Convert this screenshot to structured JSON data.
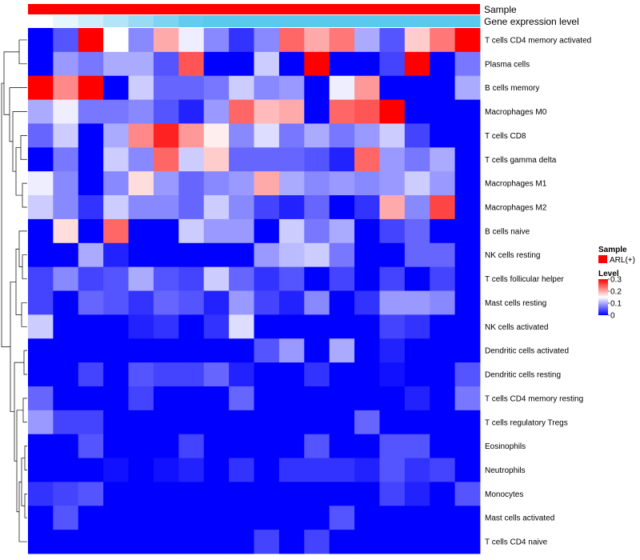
{
  "chart_data": {
    "type": "heatmap",
    "title": "",
    "annotation_tracks": [
      {
        "name": "Sample",
        "color": "#ff0000"
      },
      {
        "name": "Gene expression level",
        "gradient": [
          "#ffffff",
          "#5bc8ee"
        ]
      }
    ],
    "rows": [
      "T cells CD4 memory activated",
      "Plasma cells",
      "B cells memory",
      "Macrophages M0",
      "T cells CD8",
      "T cells gamma delta",
      "Macrophages M1",
      "Macrophages M2",
      "B cells naive",
      "NK cells resting",
      "T cells follicular helper",
      "Mast cells resting",
      "NK cells activated",
      "Dendritic cells activated",
      "Dendritic cells resting",
      "T cells CD4 memory resting",
      "T cells regulatory  Tregs",
      "Eosinophils",
      "Neutrophils",
      "Monocytes",
      "Mast cells activated",
      "T cells CD4 naive"
    ],
    "n_samples": 18,
    "values": [
      [
        0.0,
        0.05,
        0.3,
        0.15,
        0.08,
        0.2,
        0.14,
        0.08,
        0.03,
        0.08,
        0.24,
        0.2,
        0.23,
        0.1,
        0.05,
        0.18,
        0.23,
        0.3
      ],
      [
        0.0,
        0.09,
        0.07,
        0.1,
        0.1,
        0.05,
        0.25,
        0.0,
        0.0,
        0.12,
        0.0,
        0.3,
        0.0,
        0.0,
        0.04,
        0.3,
        0.0,
        0.07
      ],
      [
        0.3,
        0.22,
        0.3,
        0.0,
        0.12,
        0.06,
        0.06,
        0.07,
        0.12,
        0.08,
        0.09,
        0.0,
        0.14,
        0.21,
        0.0,
        0.0,
        0.0,
        0.1
      ],
      [
        0.1,
        0.14,
        0.07,
        0.07,
        0.08,
        0.05,
        0.02,
        0.09,
        0.24,
        0.19,
        0.2,
        0.0,
        0.24,
        0.25,
        0.3,
        0.0,
        0.0,
        0.0
      ],
      [
        0.06,
        0.12,
        0.0,
        0.1,
        0.22,
        0.28,
        0.21,
        0.16,
        0.08,
        0.13,
        0.07,
        0.1,
        0.07,
        0.09,
        0.12,
        0.04,
        0.0,
        0.0
      ],
      [
        0.0,
        0.07,
        0.0,
        0.12,
        0.08,
        0.24,
        0.12,
        0.18,
        0.06,
        0.06,
        0.06,
        0.05,
        0.02,
        0.24,
        0.09,
        0.07,
        0.1,
        0.0
      ],
      [
        0.14,
        0.08,
        0.0,
        0.08,
        0.17,
        0.09,
        0.06,
        0.08,
        0.09,
        0.2,
        0.1,
        0.08,
        0.09,
        0.08,
        0.09,
        0.12,
        0.09,
        0.0
      ],
      [
        0.12,
        0.08,
        0.03,
        0.12,
        0.08,
        0.08,
        0.06,
        0.12,
        0.08,
        0.04,
        0.02,
        0.06,
        0.0,
        0.03,
        0.2,
        0.08,
        0.26,
        0.0
      ],
      [
        0.0,
        0.17,
        0.0,
        0.24,
        0.0,
        0.0,
        0.12,
        0.09,
        0.09,
        0.0,
        0.12,
        0.07,
        0.1,
        0.0,
        0.04,
        0.06,
        0.0,
        0.0
      ],
      [
        0.0,
        0.0,
        0.1,
        0.02,
        0.0,
        0.0,
        0.0,
        0.0,
        0.0,
        0.09,
        0.11,
        0.12,
        0.07,
        0.0,
        0.0,
        0.06,
        0.06,
        0.0
      ],
      [
        0.04,
        0.08,
        0.04,
        0.05,
        0.1,
        0.05,
        0.04,
        0.12,
        0.06,
        0.03,
        0.05,
        0.0,
        0.04,
        0.0,
        0.04,
        0.0,
        0.04,
        0.0
      ],
      [
        0.04,
        0.0,
        0.06,
        0.05,
        0.03,
        0.06,
        0.05,
        0.02,
        0.09,
        0.04,
        0.02,
        0.08,
        0.0,
        0.03,
        0.09,
        0.09,
        0.08,
        0.0
      ],
      [
        0.12,
        0.0,
        0.0,
        0.0,
        0.02,
        0.03,
        0.0,
        0.03,
        0.13,
        0.0,
        0.0,
        0.0,
        0.0,
        0.0,
        0.04,
        0.03,
        0.0,
        0.0
      ],
      [
        0.0,
        0.0,
        0.0,
        0.0,
        0.0,
        0.0,
        0.0,
        0.0,
        0.0,
        0.05,
        0.09,
        0.0,
        0.1,
        0.0,
        0.02,
        0.0,
        0.0,
        0.0
      ],
      [
        0.0,
        0.0,
        0.04,
        0.0,
        0.05,
        0.04,
        0.04,
        0.06,
        0.02,
        0.0,
        0.0,
        0.03,
        0.0,
        0.0,
        0.01,
        0.0,
        0.0,
        0.05
      ],
      [
        0.06,
        0.0,
        0.0,
        0.0,
        0.04,
        0.0,
        0.0,
        0.0,
        0.06,
        0.0,
        0.0,
        0.0,
        0.0,
        0.0,
        0.0,
        0.02,
        0.0,
        0.07
      ],
      [
        0.09,
        0.04,
        0.04,
        0.0,
        0.0,
        0.0,
        0.0,
        0.0,
        0.0,
        0.0,
        0.0,
        0.0,
        0.0,
        0.06,
        0.0,
        0.0,
        0.0,
        0.0
      ],
      [
        0.0,
        0.0,
        0.05,
        0.0,
        0.0,
        0.0,
        0.04,
        0.0,
        0.0,
        0.0,
        0.0,
        0.05,
        0.0,
        0.0,
        0.05,
        0.05,
        0.0,
        0.0
      ],
      [
        0.0,
        0.0,
        0.0,
        0.01,
        0.0,
        0.01,
        0.02,
        0.0,
        0.03,
        0.0,
        0.03,
        0.03,
        0.03,
        0.02,
        0.05,
        0.03,
        0.04,
        0.0
      ],
      [
        0.03,
        0.04,
        0.05,
        0.0,
        0.0,
        0.0,
        0.0,
        0.0,
        0.0,
        0.0,
        0.0,
        0.0,
        0.0,
        0.0,
        0.04,
        0.02,
        0.0,
        0.05
      ],
      [
        0.0,
        0.05,
        0.0,
        0.0,
        0.0,
        0.0,
        0.0,
        0.0,
        0.0,
        0.0,
        0.0,
        0.0,
        0.05,
        0.0,
        0.0,
        0.0,
        0.0,
        0.0
      ],
      [
        0.0,
        0.0,
        0.0,
        0.0,
        0.0,
        0.0,
        0.0,
        0.0,
        0.0,
        0.04,
        0.0,
        0.04,
        0.0,
        0.0,
        0.0,
        0.0,
        0.0,
        0.0
      ]
    ],
    "color_scale": {
      "min": 0,
      "mid": 0.15,
      "max": 0.3,
      "low_color": "#0000ff",
      "mid_color": "#ffffff",
      "high_color": "#ff0000"
    },
    "legend": {
      "sample_title": "Sample",
      "sample_entry": "ARL(+)",
      "sample_color": "#ff0000",
      "level_title": "Level",
      "level_ticks": [
        "0.3",
        "0.2",
        "0.1",
        "0"
      ],
      "level_tick_values": [
        0.3,
        0.2,
        0.1,
        0
      ],
      "placement": "right"
    },
    "dendrogram": "rows"
  }
}
